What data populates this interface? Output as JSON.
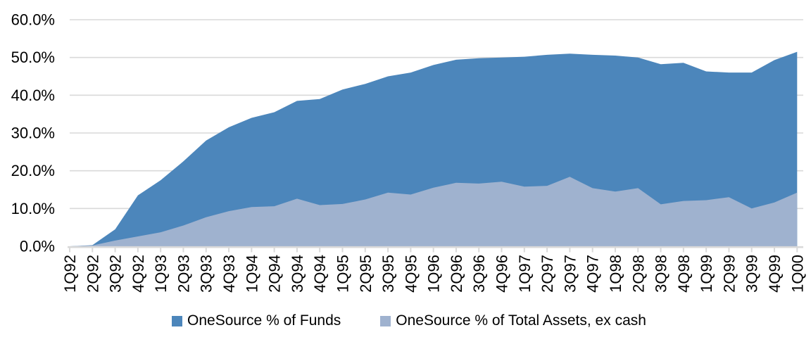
{
  "chart_data": {
    "type": "area",
    "title": "",
    "xlabel": "",
    "ylabel": "",
    "categories": [
      "1Q92",
      "2Q92",
      "3Q92",
      "4Q92",
      "1Q93",
      "2Q93",
      "3Q93",
      "4Q93",
      "1Q94",
      "2Q94",
      "3Q94",
      "4Q94",
      "1Q95",
      "2Q95",
      "3Q95",
      "4Q95",
      "1Q96",
      "2Q96",
      "3Q96",
      "4Q96",
      "1Q97",
      "2Q97",
      "3Q97",
      "4Q97",
      "1Q98",
      "2Q98",
      "3Q98",
      "4Q98",
      "1Q99",
      "2Q99",
      "3Q99",
      "4Q99",
      "1Q00"
    ],
    "series": [
      {
        "name": "OneSource % of Funds",
        "color": "#4C86BB",
        "values": [
          0.0,
          0.3,
          4.5,
          13.5,
          17.5,
          22.5,
          28.0,
          31.5,
          34.0,
          35.5,
          38.5,
          39.0,
          41.5,
          43.0,
          45.0,
          46.0,
          48.0,
          49.4,
          49.8,
          50.0,
          50.2,
          50.7,
          51.0,
          50.7,
          50.5,
          50.0,
          48.2,
          48.6,
          46.3,
          46.0,
          46.0,
          49.3,
          51.5
        ]
      },
      {
        "name": "OneSource % of Total Assets, ex cash",
        "color": "#9FB2CF",
        "values": [
          0.0,
          0.2,
          1.5,
          2.6,
          3.7,
          5.5,
          7.7,
          9.3,
          10.4,
          10.6,
          12.6,
          10.9,
          11.2,
          12.4,
          14.2,
          13.7,
          15.5,
          16.8,
          16.6,
          17.1,
          15.8,
          16.0,
          18.4,
          15.4,
          14.5,
          15.4,
          11.1,
          12.0,
          12.2,
          13.0,
          10.0,
          11.6,
          14.2
        ]
      }
    ],
    "ylim": [
      0,
      60
    ],
    "y_tick_labels": [
      "0.0%",
      "10.0%",
      "20.0%",
      "30.0%",
      "40.0%",
      "50.0%",
      "60.0%"
    ],
    "grid": "horizontal",
    "gridline_color": "#D9D9D9",
    "axis_line_color": "#D9D9D9",
    "tick_label_color": "#000000",
    "legend_position": "bottom"
  }
}
